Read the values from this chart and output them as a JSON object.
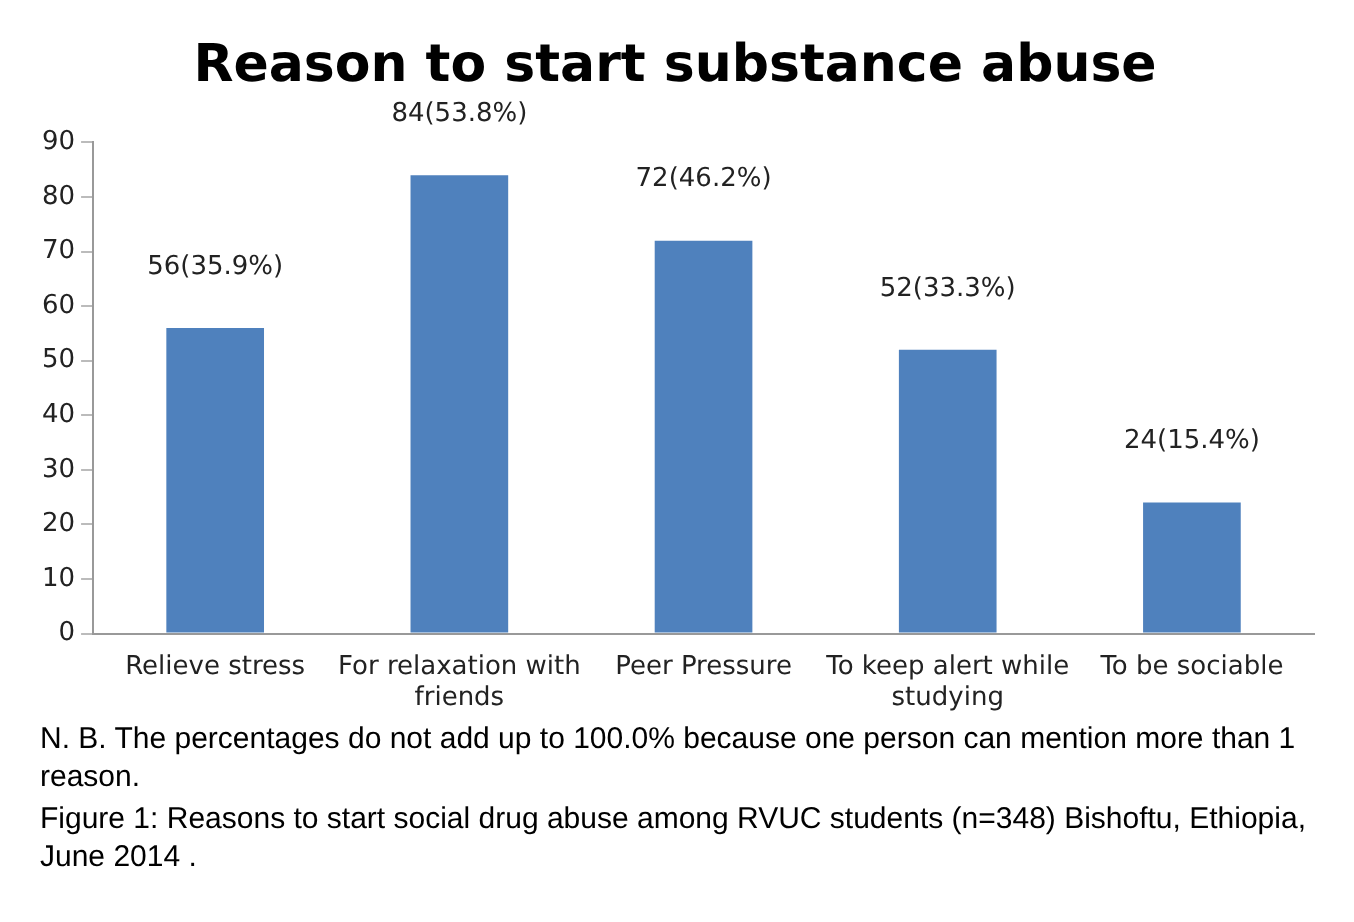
{
  "chart_data": {
    "type": "bar",
    "title": "Reason to start substance abuse",
    "categories": [
      "Relieve stress",
      "For relaxation with friends",
      "Peer Pressure",
      "To keep alert while studying",
      "To be sociable"
    ],
    "values": [
      56,
      84,
      72,
      52,
      24
    ],
    "value_labels": [
      "56(35.9%)",
      "84(53.8%)",
      "72(46.2%)",
      "52(33.3%)",
      "24(15.4%)"
    ],
    "color": "#4f81bd",
    "ylim": [
      0,
      90
    ],
    "yticks": [
      0,
      10,
      20,
      30,
      40,
      50,
      60,
      70,
      80,
      90
    ],
    "grid": false,
    "legend": false,
    "annotations": [
      "N. B. The percentages do not add up to 100.0% because one person can mention more than 1 reason.",
      "Figure 1: Reasons to start social drug abuse among RVUC students (n=348) Bishoftu, Ethiopia, June 2014 ."
    ]
  }
}
